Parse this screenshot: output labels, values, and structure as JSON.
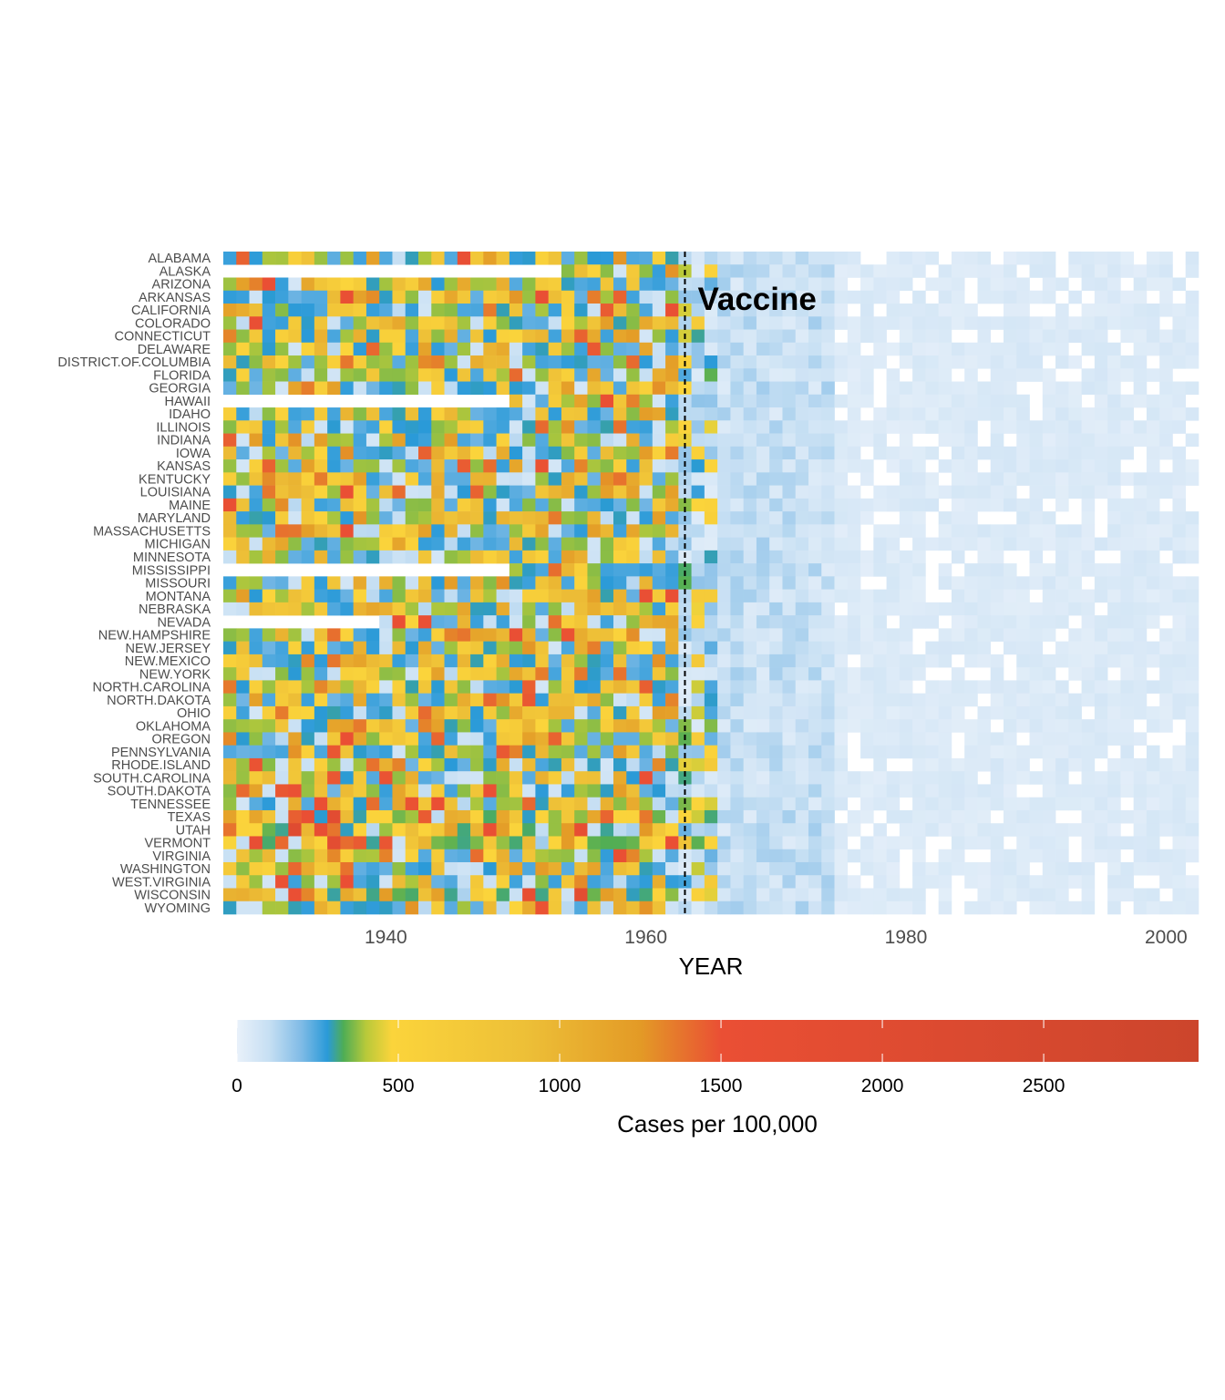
{
  "chart_data": {
    "type": "heatmap",
    "x_label": "YEAR",
    "y_categories": [
      "ALABAMA",
      "ALASKA",
      "ARIZONA",
      "ARKANSAS",
      "CALIFORNIA",
      "COLORADO",
      "CONNECTICUT",
      "DELAWARE",
      "DISTRICT.OF.COLUMBIA",
      "FLORIDA",
      "GEORGIA",
      "HAWAII",
      "IDAHO",
      "ILLINOIS",
      "INDIANA",
      "IOWA",
      "KANSAS",
      "KENTUCKY",
      "LOUISIANA",
      "MAINE",
      "MARYLAND",
      "MASSACHUSETTS",
      "MICHIGAN",
      "MINNESOTA",
      "MISSISSIPPI",
      "MISSOURI",
      "MONTANA",
      "NEBRASKA",
      "NEVADA",
      "NEW.HAMPSHIRE",
      "NEW.JERSEY",
      "NEW.MEXICO",
      "NEW.YORK",
      "NORTH.CAROLINA",
      "NORTH.DAKOTA",
      "OHIO",
      "OKLAHOMA",
      "OREGON",
      "PENNSYLVANIA",
      "RHODE.ISLAND",
      "SOUTH.CAROLINA",
      "SOUTH.DAKOTA",
      "TENNESSEE",
      "TEXAS",
      "UTAH",
      "VERMONT",
      "VIRGINIA",
      "WASHINGTON",
      "WEST.VIRGINIA",
      "WISCONSIN",
      "WYOMING"
    ],
    "x_range": [
      1928,
      2002
    ],
    "x_ticks": [
      "1940",
      "1960",
      "1980",
      "2000"
    ],
    "x_tick_values": [
      1940,
      1960,
      1980,
      2000
    ],
    "vaccine_year": 1963,
    "vaccine_annotation": "Vaccine",
    "color_scale": {
      "title": "Cases per 100,000",
      "min": 0,
      "max": 2980,
      "ticks": [
        "0",
        "500",
        "1000",
        "1500",
        "2000",
        "2500"
      ],
      "tick_values": [
        0,
        500,
        1000,
        1500,
        2000,
        2500
      ],
      "stops": [
        {
          "value": 0,
          "color": "#e9f1fa"
        },
        {
          "value": 100,
          "color": "#c6dff3"
        },
        {
          "value": 200,
          "color": "#7fbbe6"
        },
        {
          "value": 280,
          "color": "#2a9ad8"
        },
        {
          "value": 330,
          "color": "#4fad55"
        },
        {
          "value": 400,
          "color": "#b8c93a"
        },
        {
          "value": 480,
          "color": "#fbd43b"
        },
        {
          "value": 900,
          "color": "#edbf37"
        },
        {
          "value": 1250,
          "color": "#e39a26"
        },
        {
          "value": 1500,
          "color": "#ea4f34"
        },
        {
          "value": 2980,
          "color": "#cc452c"
        }
      ]
    },
    "pattern_notes": "Per-state yearly values (~1928-2002). Early years mostly 0-1500 per 100,000; sharp drop after the 1963 vaccine to near 0. Some early years missing (e.g. Alaska, Hawaii, Nevada, Mississippi)."
  }
}
